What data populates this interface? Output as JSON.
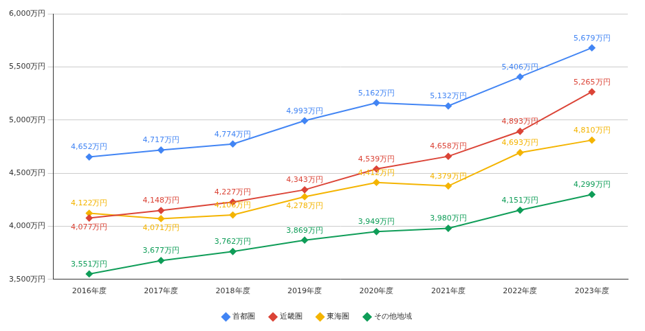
{
  "chart_data": {
    "type": "line",
    "categories": [
      "2016年度",
      "2017年度",
      "2018年度",
      "2019年度",
      "2020年度",
      "2021年度",
      "2022年度",
      "2023年度"
    ],
    "series": [
      {
        "name": "首都圏",
        "color": "#4285f4",
        "values": [
          4652,
          4717,
          4774,
          4993,
          5162,
          5132,
          5406,
          5679
        ],
        "value_labels": [
          "4,652万円",
          "4,717万円",
          "4,774万円",
          "4,993万円",
          "5,162万円",
          "5,132万円",
          "5,406万円",
          "5,679万円"
        ]
      },
      {
        "name": "近畿圏",
        "color": "#db4437",
        "values": [
          4077,
          4148,
          4227,
          4343,
          4539,
          4658,
          4893,
          5265
        ],
        "value_labels": [
          "4,077万円",
          "4,148万円",
          "4,227万円",
          "4,343万円",
          "4,539万円",
          "4,658万円",
          "4,893万円",
          "5,265万円"
        ]
      },
      {
        "name": "東海圏",
        "color": "#f4b400",
        "values": [
          4122,
          4071,
          4106,
          4278,
          4412,
          4379,
          4693,
          4810
        ],
        "value_labels": [
          "4,122万円",
          "4,071万円",
          "4,106万円",
          "4,278万円",
          "4,412万円",
          "4,379万円",
          "4,693万円",
          "4,810万円"
        ]
      },
      {
        "name": "その他地域",
        "color": "#0f9d58",
        "values": [
          3551,
          3677,
          3762,
          3869,
          3949,
          3980,
          4151,
          4299
        ],
        "value_labels": [
          "3,551万円",
          "3,677万円",
          "3,762万円",
          "3,869万円",
          "3,949万円",
          "3,980万円",
          "4,151万円",
          "4,299万円"
        ]
      }
    ],
    "ylim": [
      3500,
      6000
    ],
    "yticks": [
      {
        "value": 3500,
        "label": "3,500万円"
      },
      {
        "value": 4000,
        "label": "4,000万円"
      },
      {
        "value": 4500,
        "label": "4,500万円"
      },
      {
        "value": 5000,
        "label": "5,000万円"
      },
      {
        "value": 5500,
        "label": "5,500万円"
      },
      {
        "value": 6000,
        "label": "6,000万円"
      }
    ],
    "grid": true,
    "legend": "bottom",
    "data_labels": true,
    "marker": "diamond"
  }
}
